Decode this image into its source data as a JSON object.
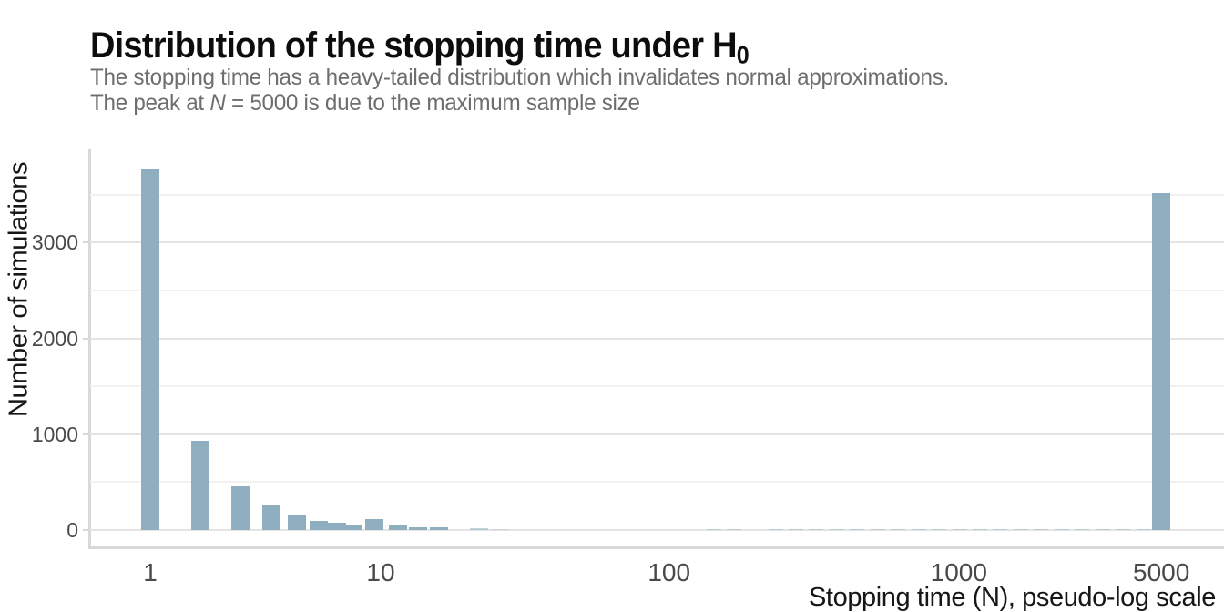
{
  "header": {
    "title_main": "Distribution of the stopping time under H",
    "title_subscript": "0",
    "subtitle_line1": "The stopping time has a heavy-tailed distribution which invalidates normal approximations.",
    "subtitle_line2_pre": "The peak at ",
    "subtitle_line2_italic": "N",
    "subtitle_line2_post": " = 5000 is due to the maximum sample size"
  },
  "chart_data": {
    "type": "bar",
    "title": "Distribution of the stopping time under H0",
    "subtitle": "The stopping time has a heavy-tailed distribution which invalidates normal approximations. The peak at N = 5000 is due to the maximum sample size",
    "xlabel": "Stopping time (N), pseudo-log scale",
    "ylabel": "Number of simulations",
    "x_scale": "pseudo-log (asinh(x/2)/ln10)",
    "x_ticks": [
      1,
      10,
      100,
      1000,
      5000
    ],
    "y_ticks": [
      0,
      1000,
      2000,
      3000
    ],
    "y_minor_gridlines": [
      500,
      1500,
      2500,
      3500
    ],
    "ylim": [
      0,
      3975
    ],
    "grid": "horizontal-only",
    "legend": "none",
    "bar_color": "#8FAFC0",
    "bars": [
      {
        "n": 1,
        "count": 3760
      },
      {
        "n": 2,
        "count": 930
      },
      {
        "n": 3,
        "count": 460
      },
      {
        "n": 4,
        "count": 265
      },
      {
        "n": 5,
        "count": 160
      },
      {
        "n": 6,
        "count": 100
      },
      {
        "n": 7,
        "count": 80
      },
      {
        "n": 8,
        "count": 60
      },
      {
        "n": 9.5,
        "count": 110
      },
      {
        "n": 11.5,
        "count": 50
      },
      {
        "n": 13.5,
        "count": 33
      },
      {
        "n": 16,
        "count": 25
      },
      {
        "n": 22,
        "count": 18,
        "opacity": 0.55
      },
      {
        "n": 26,
        "count": 10,
        "opacity": 0.3
      },
      {
        "n": 5000,
        "count": 3520
      }
    ],
    "tail_bars": {
      "note": "heavy tail: tiny bars of a few simulations per bin",
      "count_each": 8,
      "opacity": 0.5,
      "n_values": [
        143,
        168,
        233,
        274,
        322,
        379,
        446,
        525,
        617,
        726,
        854,
        1005,
        1182,
        1391,
        1636,
        1925,
        2264,
        2663,
        3133,
        3686,
        4336
      ]
    }
  }
}
